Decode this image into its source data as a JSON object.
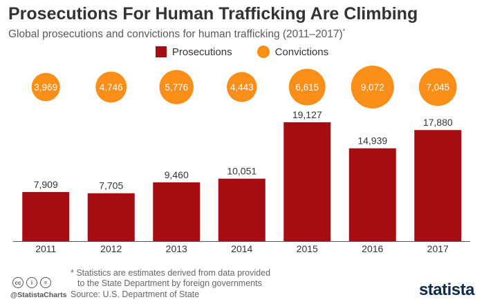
{
  "header": {
    "title": "Prosecutions For Human Trafficking Are Climbing",
    "subtitle": "Global prosecutions and convictions for human trafficking (2011–2017)",
    "subtitle_mark": "*"
  },
  "legend": {
    "prosecutions": "Prosecutions",
    "convictions": "Convictions"
  },
  "colors": {
    "prosecutions": "#a50d12",
    "convictions": "#f98e19",
    "brand": "#0f2b46"
  },
  "chart_data": {
    "type": "bar",
    "categories": [
      "2011",
      "2012",
      "2013",
      "2014",
      "2015",
      "2016",
      "2017"
    ],
    "series": [
      {
        "name": "Prosecutions",
        "values": [
          7909,
          7705,
          9460,
          10051,
          19127,
          14939,
          17880
        ]
      },
      {
        "name": "Convictions",
        "values": [
          3969,
          4746,
          5776,
          4443,
          6615,
          9072,
          7045
        ]
      }
    ],
    "value_labels": {
      "prosecutions": [
        "7,909",
        "7,705",
        "9,460",
        "10,051",
        "19,127",
        "14,939",
        "17,880"
      ],
      "convictions": [
        "3,969",
        "4,746",
        "5,776",
        "4,443",
        "6,615",
        "9,072",
        "7,045"
      ]
    },
    "convictions_display": "bubbles sized by value",
    "ylim": [
      0,
      19127
    ],
    "grid": false,
    "legend_position": "top-center"
  },
  "footer": {
    "note_line1": "* Statistics are estimates derived from data provided",
    "note_line2": "to the State Department by foreign governments",
    "source": "Source: U.S. Department of State",
    "handle": "@StatistaCharts",
    "cc_icons": [
      "cc-icon",
      "by-icon",
      "nd-icon"
    ],
    "cc_glyphs": [
      "cc",
      "i",
      "="
    ],
    "brand": "statista"
  }
}
